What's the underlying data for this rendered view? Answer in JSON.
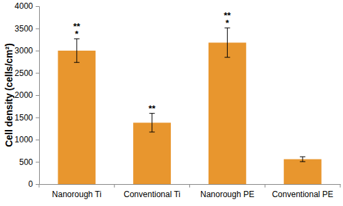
{
  "chart_data": {
    "type": "bar",
    "y_label": "Cell density (cells/cm²)",
    "categories": [
      "Nanorough Ti",
      "Conventional Ti",
      "Nanorough PE",
      "Conventional PE"
    ],
    "values": [
      3000,
      1380,
      3180,
      560
    ],
    "errors": [
      265,
      210,
      330,
      55
    ],
    "significance": [
      [
        "**",
        "*"
      ],
      [
        "**"
      ],
      [
        "**",
        "*"
      ],
      null
    ],
    "color": "#e8962e",
    "ylim": [
      0,
      4000
    ],
    "yticks": [
      0,
      500,
      1000,
      1500,
      2000,
      2500,
      3000,
      3500,
      4000
    ],
    "grid": false
  }
}
